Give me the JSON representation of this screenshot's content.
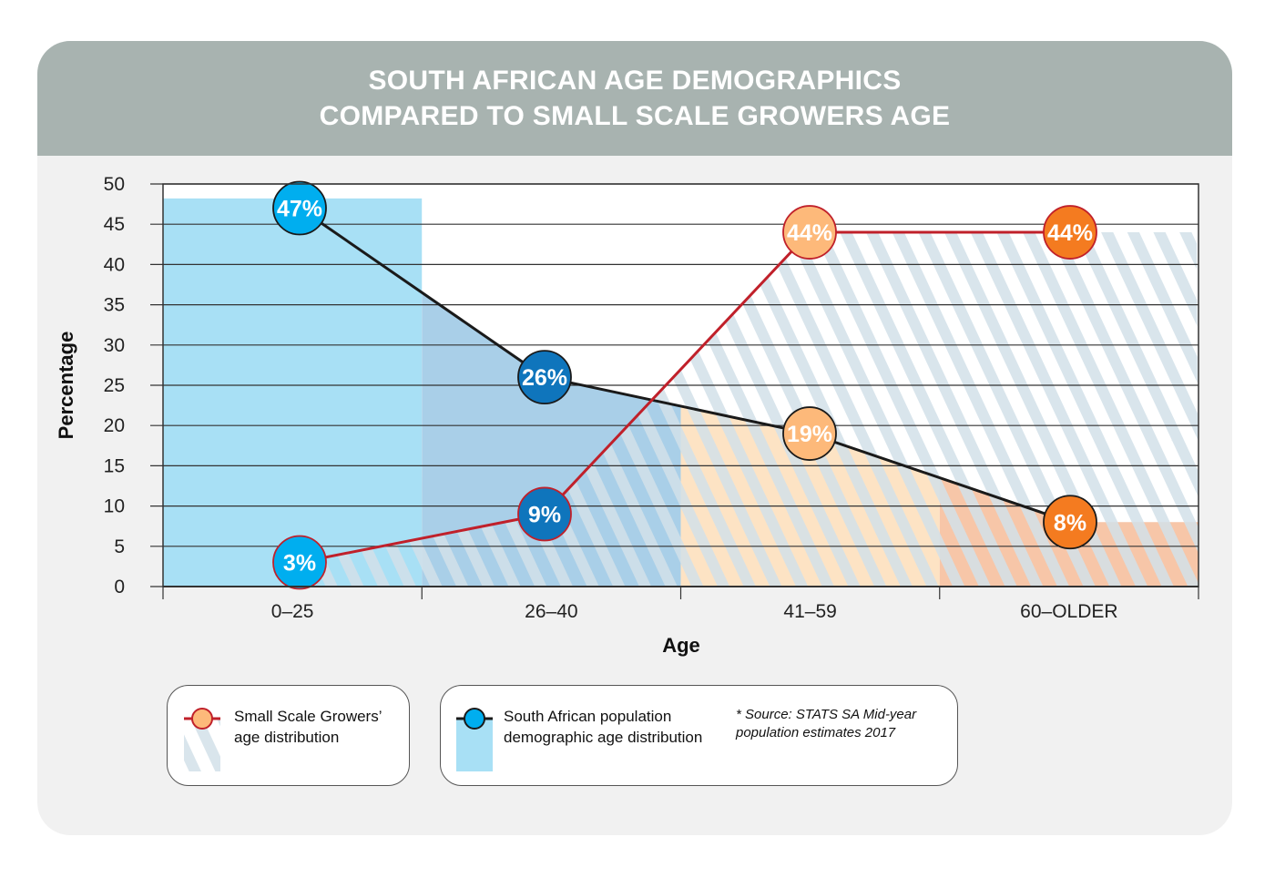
{
  "chart_data": {
    "type": "line",
    "title": "SOUTH AFRICAN AGE DEMOGRAPHICS\nCOMPARED TO SMALL SCALE GROWERS AGE",
    "title_lines": [
      "SOUTH AFRICAN AGE DEMOGRAPHICS",
      "COMPARED TO SMALL SCALE GROWERS AGE"
    ],
    "xlabel": "Age",
    "ylabel": "Percentage",
    "categories": [
      "0–25",
      "26–40",
      "41–59",
      "60–OLDER"
    ],
    "ylim": [
      0,
      50
    ],
    "yticks": [
      0,
      5,
      10,
      15,
      20,
      25,
      30,
      35,
      40,
      45,
      50
    ],
    "grid": true,
    "series": [
      {
        "name": "South African population demographic age distribution",
        "values": [
          47,
          26,
          19,
          8
        ],
        "labels": [
          "47%",
          "26%",
          "19%",
          "8%"
        ],
        "line_color": "#1a1a1a",
        "style": "solid area"
      },
      {
        "name": "Small Scale Growers' age distribution",
        "values": [
          3,
          9,
          44,
          44
        ],
        "labels": [
          "3%",
          "9%",
          "44%",
          "44%"
        ],
        "line_color": "#c0202a",
        "style": "hatched area"
      }
    ],
    "legend_placement": "bottom-left"
  },
  "legend": {
    "growers_line1": "Small Scale Growers’",
    "growers_line2": "age distribution",
    "population_line1": "South African  population",
    "population_line2": "demographic age distribution",
    "source_line1": "* Source: STATS SA  Mid-year",
    "source_line2": "population estimates 2017"
  },
  "colors": {
    "header": "#a8b3b0",
    "background": "#f1f1f1",
    "light_blue": "#00aeef",
    "dark_blue": "#0f75bc",
    "light_orange": "#fdb97a",
    "orange": "#f47b20",
    "red_line": "#c0202a"
  }
}
